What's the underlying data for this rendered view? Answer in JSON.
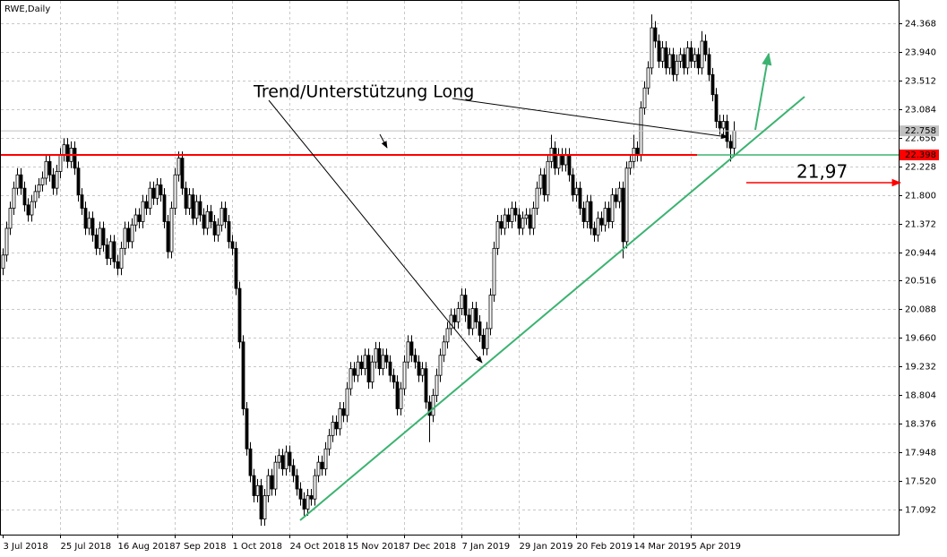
{
  "chart_data": {
    "type": "candlestick",
    "title": "RWE,Daily",
    "annotations": [
      "Trend/Unterstützung Long",
      "21,97"
    ],
    "last_price": 22.758,
    "level": 22.398,
    "up_color": "#ffffff",
    "down_color": "#000000",
    "level_color": "#ff0000",
    "last_color": "#c0c0c0",
    "ylim": [
      16.717,
      24.716
    ],
    "yticks": [
      24.368,
      {
        "value": 23.94,
        "label": "23.940"
      },
      23.512,
      23.084,
      22.656,
      22.228,
      {
        "value": 21.8,
        "label": "21.800"
      },
      21.372,
      20.944,
      20.516,
      20.088,
      {
        "value": 19.66,
        "label": "19.660"
      },
      19.232,
      18.804,
      18.376,
      17.948,
      {
        "value": 17.52,
        "label": "17.520"
      },
      17.092
    ],
    "grid": true,
    "categories": [
      "3 Jul 2018",
      null,
      null,
      null,
      null,
      null,
      null,
      null,
      null,
      null,
      null,
      null,
      null,
      null,
      null,
      null,
      "25 Jul 2018",
      null,
      null,
      null,
      null,
      null,
      null,
      null,
      null,
      null,
      null,
      null,
      null,
      null,
      null,
      null,
      "16 Aug 2018",
      null,
      null,
      null,
      null,
      null,
      null,
      null,
      null,
      null,
      null,
      null,
      null,
      null,
      null,
      null,
      "7 Sep 2018",
      null,
      null,
      null,
      null,
      null,
      null,
      null,
      null,
      null,
      null,
      null,
      null,
      null,
      null,
      null,
      "1 Oct 2018",
      null,
      null,
      null,
      null,
      null,
      null,
      null,
      null,
      null,
      null,
      null,
      null,
      null,
      null,
      null,
      "24 Oct 2018",
      null,
      null,
      null,
      null,
      null,
      null,
      null,
      null,
      null,
      null,
      null,
      null,
      null,
      null,
      null,
      "15 Nov 2018",
      null,
      null,
      null,
      null,
      null,
      null,
      null,
      null,
      null,
      null,
      null,
      null,
      null,
      null,
      null,
      "7 Dec 2018",
      null,
      null,
      null,
      null,
      null,
      null,
      null,
      null,
      null,
      null,
      null,
      null,
      null,
      null,
      null,
      "7 Jan 2019",
      null,
      null,
      null,
      null,
      null,
      null,
      null,
      null,
      null,
      null,
      null,
      null,
      null,
      null,
      null,
      "29 Jan 2019",
      null,
      null,
      null,
      null,
      null,
      null,
      null,
      null,
      null,
      null,
      null,
      null,
      null,
      null,
      null,
      "20 Feb 2019",
      null,
      null,
      null,
      null,
      null,
      null,
      null,
      null,
      null,
      null,
      null,
      null,
      null,
      null,
      null,
      "14 Mar 2019",
      null,
      null,
      null,
      null,
      null,
      null,
      null,
      null,
      null,
      null,
      null,
      null,
      null,
      null,
      null,
      "5 Apr 2019",
      null,
      null,
      null,
      null,
      null,
      null,
      null,
      null,
      null,
      null,
      null,
      null
    ],
    "open": [
      20.7,
      20.9,
      21.3,
      21.6,
      21.9,
      22.1,
      21.9,
      21.65,
      21.5,
      21.7,
      21.85,
      21.95,
      22.05,
      22.3,
      22.1,
      21.9,
      22.15,
      22.4,
      22.55,
      22.3,
      22.5,
      22.2,
      21.8,
      21.6,
      21.3,
      21.45,
      21.2,
      21.0,
      21.3,
      21.05,
      20.85,
      21.1,
      20.8,
      20.7,
      21.0,
      21.3,
      21.1,
      21.35,
      21.5,
      21.4,
      21.7,
      21.6,
      21.9,
      21.75,
      21.95,
      21.8,
      21.4,
      20.95,
      21.6,
      22.1,
      22.35,
      21.9,
      21.6,
      21.8,
      21.45,
      21.7,
      21.5,
      21.3,
      21.55,
      21.4,
      21.2,
      21.35,
      21.6,
      21.4,
      21.1,
      21.0,
      20.4,
      19.6,
      18.6,
      18.0,
      17.6,
      17.3,
      17.45,
      16.95,
      17.3,
      17.6,
      17.4,
      17.8,
      17.9,
      17.7,
      17.95,
      17.75,
      17.6,
      17.4,
      17.25,
      17.1,
      17.3,
      17.25,
      17.6,
      17.8,
      17.7,
      18.0,
      18.2,
      18.4,
      18.3,
      18.6,
      18.5,
      18.9,
      19.2,
      19.1,
      19.3,
      19.2,
      19.4,
      19.0,
      19.3,
      19.5,
      19.2,
      19.4,
      19.3,
      19.1,
      19.0,
      18.6,
      18.9,
      19.3,
      19.6,
      19.4,
      19.3,
      19.1,
      19.2,
      18.7,
      18.5,
      18.8,
      19.1,
      19.4,
      19.6,
      19.8,
      20.0,
      19.9,
      20.1,
      20.3,
      20.0,
      19.8,
      20.1,
      19.9,
      19.7,
      19.5,
      19.8,
      20.3,
      21.0,
      21.4,
      21.3,
      21.5,
      21.4,
      21.6,
      21.5,
      21.3,
      21.45,
      21.5,
      21.3,
      21.6,
      21.9,
      22.1,
      21.8,
      22.3,
      22.5,
      22.2,
      22.4,
      22.25,
      22.4,
      22.1,
      21.8,
      21.9,
      21.6,
      21.4,
      21.7,
      21.3,
      21.2,
      21.45,
      21.35,
      21.6,
      21.4,
      21.8,
      21.7,
      21.9,
      21.1,
      22.2,
      22.3,
      22.5,
      22.4,
      23.1,
      23.4,
      23.7,
      24.3,
      24.1,
      23.8,
      24.0,
      23.7,
      23.9,
      23.6,
      23.8,
      23.9,
      23.7,
      24.0,
      23.8,
      23.9,
      23.7,
      24.1,
      23.9,
      23.6,
      23.3,
      22.9,
      22.8,
      22.9,
      22.6,
      22.5
    ],
    "high": [
      21.0,
      21.4,
      21.7,
      22.0,
      22.2,
      22.2,
      22.0,
      21.75,
      21.8,
      21.95,
      22.05,
      22.15,
      22.4,
      22.4,
      22.2,
      22.25,
      22.5,
      22.65,
      22.65,
      22.6,
      22.6,
      22.3,
      21.9,
      21.7,
      21.55,
      21.55,
      21.3,
      21.4,
      21.4,
      21.15,
      21.2,
      21.2,
      20.9,
      21.1,
      21.4,
      21.4,
      21.45,
      21.6,
      21.6,
      21.8,
      21.8,
      22.0,
      22.0,
      22.05,
      22.05,
      21.9,
      21.5,
      21.7,
      22.2,
      22.45,
      22.45,
      22.0,
      21.9,
      21.9,
      21.8,
      21.8,
      21.6,
      21.65,
      21.65,
      21.5,
      21.45,
      21.7,
      21.7,
      21.5,
      21.2,
      21.1,
      20.5,
      19.7,
      18.7,
      18.1,
      17.7,
      17.55,
      17.55,
      17.4,
      17.7,
      17.7,
      17.9,
      18.0,
      18.0,
      18.05,
      18.05,
      17.85,
      17.7,
      17.5,
      17.35,
      17.4,
      17.4,
      17.7,
      17.9,
      17.9,
      18.1,
      18.3,
      18.5,
      18.5,
      18.7,
      18.7,
      19.0,
      19.3,
      19.3,
      19.4,
      19.4,
      19.5,
      19.5,
      19.4,
      19.6,
      19.6,
      19.5,
      19.5,
      19.4,
      19.2,
      19.1,
      19.0,
      19.4,
      19.7,
      19.7,
      19.5,
      19.4,
      19.3,
      19.3,
      18.8,
      18.9,
      19.2,
      19.5,
      19.7,
      19.9,
      20.1,
      20.1,
      20.2,
      20.4,
      20.4,
      20.1,
      20.2,
      20.2,
      20.0,
      19.8,
      19.9,
      20.4,
      21.1,
      21.5,
      21.5,
      21.6,
      21.6,
      21.7,
      21.7,
      21.6,
      21.55,
      21.6,
      21.6,
      21.7,
      22.0,
      22.2,
      22.2,
      22.4,
      22.7,
      22.6,
      22.5,
      22.5,
      22.5,
      22.5,
      22.2,
      22.0,
      22.0,
      21.7,
      21.8,
      21.8,
      21.4,
      21.55,
      21.55,
      21.7,
      21.7,
      21.9,
      21.9,
      22.0,
      22.0,
      22.3,
      22.4,
      22.7,
      22.6,
      23.2,
      23.5,
      23.8,
      24.5,
      24.4,
      24.2,
      24.1,
      24.1,
      24.0,
      24.0,
      23.9,
      24.0,
      24.0,
      24.1,
      24.1,
      24.0,
      24.0,
      24.25,
      24.2,
      24.0,
      23.7,
      23.4,
      23.0,
      23.0,
      23.0,
      22.7,
      22.9
    ],
    "low": [
      20.6,
      20.8,
      21.2,
      21.5,
      21.8,
      21.8,
      21.55,
      21.4,
      21.4,
      21.6,
      21.75,
      21.85,
      21.95,
      22.0,
      21.8,
      21.8,
      22.05,
      22.3,
      22.2,
      22.2,
      22.1,
      21.7,
      21.5,
      21.2,
      21.2,
      21.1,
      20.9,
      20.9,
      20.95,
      20.75,
      20.75,
      20.7,
      20.6,
      20.6,
      20.9,
      21.0,
      21.0,
      21.25,
      21.3,
      21.3,
      21.5,
      21.5,
      21.65,
      21.65,
      21.7,
      21.3,
      20.85,
      20.85,
      21.5,
      22.0,
      21.8,
      21.5,
      21.5,
      21.35,
      21.35,
      21.4,
      21.2,
      21.2,
      21.3,
      21.1,
      21.1,
      21.25,
      21.3,
      21.0,
      20.9,
      20.3,
      19.5,
      18.5,
      17.9,
      17.5,
      17.2,
      17.2,
      16.85,
      16.85,
      17.2,
      17.3,
      17.3,
      17.7,
      17.6,
      17.6,
      17.65,
      17.5,
      17.3,
      17.15,
      17.0,
      17.0,
      17.15,
      17.15,
      17.5,
      17.6,
      17.6,
      17.9,
      18.1,
      18.2,
      18.2,
      18.4,
      18.4,
      18.8,
      19.0,
      19.0,
      19.1,
      19.1,
      18.9,
      18.9,
      19.2,
      19.1,
      19.1,
      19.2,
      19.0,
      18.9,
      18.5,
      18.5,
      18.8,
      19.2,
      19.3,
      19.2,
      19.0,
      19.0,
      18.6,
      18.1,
      18.4,
      18.7,
      19.0,
      19.3,
      19.5,
      19.7,
      19.8,
      19.8,
      20.0,
      19.9,
      19.7,
      19.7,
      19.8,
      19.6,
      19.4,
      19.4,
      19.7,
      20.2,
      20.9,
      21.2,
      21.2,
      21.3,
      21.3,
      21.4,
      21.2,
      21.2,
      21.35,
      21.2,
      21.2,
      21.5,
      21.8,
      21.7,
      21.7,
      22.2,
      22.1,
      22.1,
      22.15,
      22.15,
      22.0,
      21.7,
      21.7,
      21.5,
      21.3,
      21.3,
      21.2,
      21.1,
      21.1,
      21.25,
      21.25,
      21.3,
      21.3,
      21.6,
      21.6,
      20.85,
      21.0,
      22.1,
      22.2,
      22.3,
      22.3,
      23.0,
      23.3,
      23.6,
      24.0,
      23.7,
      23.7,
      23.6,
      23.6,
      23.5,
      23.5,
      23.7,
      23.6,
      23.6,
      23.7,
      23.7,
      23.6,
      23.6,
      23.8,
      23.5,
      23.2,
      22.8,
      22.7,
      22.7,
      22.5,
      22.3,
      22.4
    ],
    "close": [
      20.9,
      21.3,
      21.6,
      21.9,
      22.1,
      21.9,
      21.65,
      21.5,
      21.7,
      21.85,
      21.95,
      22.05,
      22.3,
      22.1,
      21.9,
      22.15,
      22.4,
      22.55,
      22.3,
      22.5,
      22.2,
      21.8,
      21.6,
      21.3,
      21.45,
      21.2,
      21.0,
      21.3,
      21.05,
      20.85,
      21.1,
      20.8,
      20.7,
      21.0,
      21.3,
      21.1,
      21.35,
      21.5,
      21.4,
      21.7,
      21.6,
      21.9,
      21.75,
      21.95,
      21.8,
      21.4,
      20.95,
      21.6,
      22.1,
      22.35,
      21.9,
      21.6,
      21.8,
      21.45,
      21.7,
      21.5,
      21.3,
      21.55,
      21.4,
      21.2,
      21.35,
      21.6,
      21.4,
      21.1,
      21.0,
      20.4,
      19.6,
      18.6,
      18.0,
      17.6,
      17.3,
      17.45,
      16.95,
      17.3,
      17.6,
      17.4,
      17.8,
      17.9,
      17.7,
      17.95,
      17.75,
      17.6,
      17.4,
      17.25,
      17.1,
      17.3,
      17.25,
      17.6,
      17.8,
      17.7,
      18.0,
      18.2,
      18.4,
      18.3,
      18.6,
      18.5,
      18.9,
      19.2,
      19.1,
      19.3,
      19.2,
      19.4,
      19.0,
      19.3,
      19.5,
      19.2,
      19.4,
      19.3,
      19.1,
      19.0,
      18.6,
      18.9,
      19.3,
      19.6,
      19.4,
      19.3,
      19.1,
      19.2,
      18.7,
      18.5,
      18.8,
      19.1,
      19.4,
      19.6,
      19.8,
      20.0,
      19.9,
      20.1,
      20.3,
      20.0,
      19.8,
      20.1,
      19.9,
      19.7,
      19.5,
      19.8,
      20.3,
      21.0,
      21.4,
      21.3,
      21.5,
      21.4,
      21.6,
      21.5,
      21.3,
      21.45,
      21.5,
      21.3,
      21.6,
      21.9,
      22.1,
      21.8,
      22.3,
      22.5,
      22.2,
      22.4,
      22.25,
      22.4,
      22.1,
      21.8,
      21.9,
      21.6,
      21.4,
      21.7,
      21.3,
      21.2,
      21.45,
      21.35,
      21.6,
      21.4,
      21.8,
      21.7,
      21.9,
      21.1,
      22.2,
      22.3,
      22.5,
      22.4,
      23.1,
      23.4,
      23.7,
      24.3,
      24.1,
      23.8,
      24.0,
      23.7,
      23.9,
      23.6,
      23.8,
      23.9,
      23.7,
      24.0,
      23.8,
      23.9,
      23.7,
      24.1,
      23.9,
      23.6,
      23.3,
      22.9,
      22.8,
      22.9,
      22.6,
      22.5,
      22.76
    ]
  }
}
